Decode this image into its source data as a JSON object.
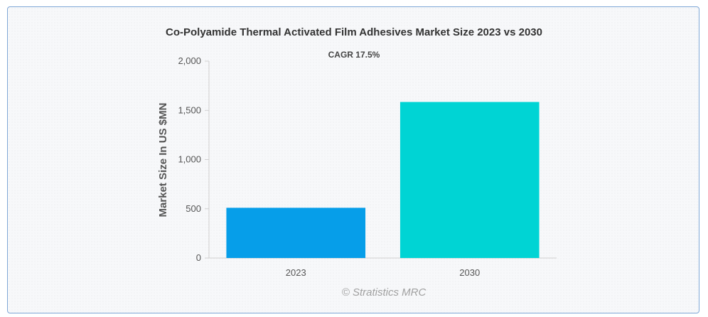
{
  "chart_data": {
    "type": "bar",
    "title": "Co-Polyamide Thermal Activated Film Adhesives Market Size 2023 vs 2030",
    "subtitle": "CAGR 17.5%",
    "xlabel": "",
    "ylabel": "Market Size In US $MN",
    "categories": [
      "2023",
      "2030"
    ],
    "values": [
      510,
      1585
    ],
    "colors": [
      "#069ee9",
      "#00d4d4"
    ],
    "ylim": [
      0,
      2000
    ],
    "yticks": [
      0,
      500,
      1000,
      1500,
      2000
    ],
    "ytick_labels": [
      "0",
      "500",
      "1,000",
      "1,500",
      "2,000"
    ],
    "grid": false,
    "legend": "none",
    "credit": "© Stratistics MRC"
  }
}
